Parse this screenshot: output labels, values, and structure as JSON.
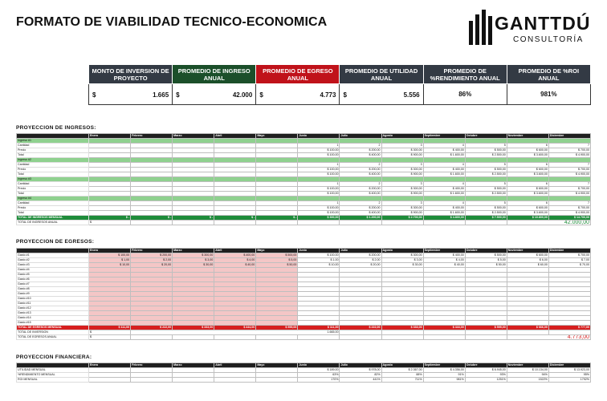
{
  "title": "FORMATO DE VIABILIDAD TECNICO-ECONOMICA",
  "logo": {
    "word": "GANTTDÚ",
    "sub": "CONSULTORÍA"
  },
  "kpis": [
    {
      "header": "MONTO DE INVERSION DE PROYECTO",
      "currency": "$",
      "value": "1.665",
      "color": "#333a44"
    },
    {
      "header": "PROMEDIO DE INGRESO ANUAL",
      "currency": "$",
      "value": "42.000",
      "color": "#1b4f2a"
    },
    {
      "header": "PROMEDIO DE EGRESO ANUAL",
      "currency": "$",
      "value": "4.773",
      "color": "#c0121a"
    },
    {
      "header": "PROMEDIO DE UTILIDAD ANUAL",
      "currency": "$",
      "value": "5.556",
      "color": "#333a44"
    },
    {
      "header": "PROMEDIO DE %RENDIMIENTO ANUAL",
      "currency": "",
      "value": "86%",
      "color": "#333a44"
    },
    {
      "header": "PROMEDIO DE %ROI ANUAL",
      "currency": "",
      "value": "981%",
      "color": "#333a44"
    }
  ],
  "sections": {
    "ingresos": "PROYECCION DE INGRESOS:",
    "egresos": "PROYECCION DE EGRESOS:",
    "financiera": "PROYECCION FINANCIERA:"
  },
  "months": [
    "Enero",
    "Febrero",
    "Marzo",
    "Abril",
    "Mayo",
    "Junio",
    "Julio",
    "Agosto",
    "Septiembre",
    "Octubre",
    "Noviembre",
    "Diciembre"
  ],
  "ingresos": {
    "groups": [
      "Ingreso #1",
      "Ingreso #2",
      "Ingreso #3",
      "Ingreso #4"
    ],
    "sub": [
      "Cantidad",
      "Precio",
      "Total"
    ],
    "cantidad": [
      "",
      "",
      "",
      "",
      "",
      "1",
      "2",
      "3",
      "4",
      "5",
      "6",
      "7"
    ],
    "precio": [
      "",
      "",
      "",
      "",
      "",
      "100,00",
      "200,00",
      "300,00",
      "400,00",
      "500,00",
      "600,00",
      "700,00"
    ],
    "total": [
      "",
      "",
      "",
      "",
      "",
      "100,00",
      "400,00",
      "900,00",
      "1.600,00",
      "2.500,00",
      "3.600,00",
      "4.900,00"
    ],
    "total_row_label": "TOTAL DE INGRESOS MENSUAL",
    "total_row": [
      "-",
      "-",
      "-",
      "-",
      "-",
      "300,00",
      "1.200,00",
      "2.700,00",
      "4.800,00",
      "7.500,00",
      "10.800,00",
      "14.700,00"
    ],
    "anual_label": "TOTAL DE INGRESOS ANUAL",
    "anual": "42.000,00"
  },
  "egresos": {
    "rows": [
      "Gasto #1",
      "Gasto #2",
      "Gasto #3",
      "Gasto #4",
      "Gasto #5",
      "Gasto #6",
      "Gasto #7",
      "Gasto #8",
      "Gasto #9",
      "Gasto #10",
      "Gasto #11",
      "Gasto #12",
      "Gasto #13",
      "Gasto #14",
      "Gasto #15"
    ],
    "g1": [
      "100,00",
      "200,00",
      "300,00",
      "400,00",
      "500,00",
      "100,00",
      "200,00",
      "300,00",
      "400,00",
      "500,00",
      "600,00",
      "700,00"
    ],
    "g2": [
      "1,00",
      "2,00",
      "3,00",
      "4,00",
      "5,00",
      "1,00",
      "2,00",
      "3,00",
      "4,00",
      "5,00",
      "6,00",
      "7,00"
    ],
    "g3": [
      "10,00",
      "20,00",
      "30,00",
      "40,00",
      "50,00",
      "10,00",
      "20,00",
      "30,00",
      "40,00",
      "50,00",
      "60,00",
      "70,00"
    ],
    "total_row_label": "TOTAL DE EGRESOS MENSUAL",
    "total_row": [
      "111,00",
      "222,00",
      "333,00",
      "444,00",
      "555,00",
      "111,00",
      "222,00",
      "333,00",
      "444,00",
      "555,00",
      "666,00",
      "777,00"
    ],
    "inversion_label": "TOTAL DE INVERSION",
    "inversion": "1.665,00",
    "anual_label": "TOTAL DE EGRESOS ANUAL",
    "anual": "4.773,00"
  },
  "financiera": {
    "rows": [
      "UTILIDAD MENSUAL",
      "%RENDIMIENTO MENSUAL",
      "ROI MENSUAL"
    ],
    "utilidad": [
      "",
      "",
      "",
      "",
      "",
      "189,00",
      "978,00",
      "2.367,00",
      "4.356,00",
      "6.945,00",
      "10.134,00",
      "13.923,00"
    ],
    "rendimiento": [
      "",
      "",
      "",
      "",
      "",
      "63%",
      "82%",
      "88%",
      "91%",
      "93%",
      "94%",
      "95%"
    ],
    "roi": [
      "",
      "",
      "",
      "",
      "",
      "170%",
      "441%",
      "711%",
      "981%",
      "1251%",
      "1522%",
      "1792%"
    ]
  }
}
